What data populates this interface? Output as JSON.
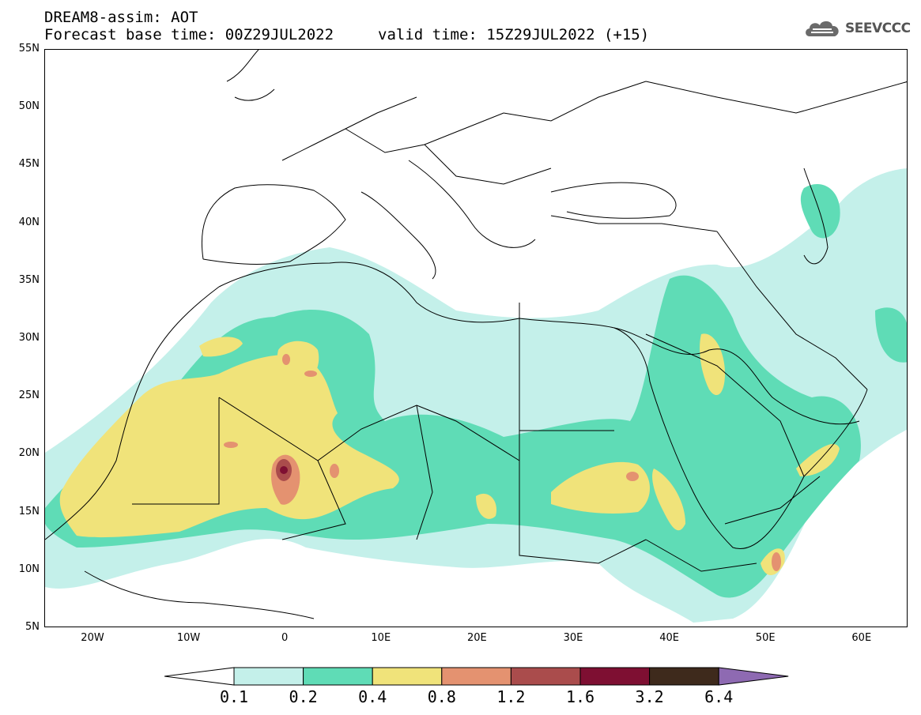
{
  "header": {
    "title": "DREAM8-assim: AOT",
    "forecast_base": "Forecast base time: 00Z29JUL2022",
    "valid_time": "valid time: 15Z29JUL2022 (+15)"
  },
  "logo": {
    "text": "SEEVCCC",
    "icon": "cloud-icon"
  },
  "map": {
    "lat_labels": [
      "55N",
      "50N",
      "45N",
      "40N",
      "35N",
      "30N",
      "25N",
      "20N",
      "15N",
      "10N",
      "5N"
    ],
    "lon_labels": [
      "20W",
      "10W",
      "0",
      "10E",
      "20E",
      "30E",
      "40E",
      "50E",
      "60E"
    ],
    "colors": {
      "level_01": "#c4f0ea",
      "level_02": "#5fdcb6",
      "level_04": "#f0e37a",
      "level_08": "#e49270",
      "level_12": "#aa4c4c",
      "level_16": "#7e0f32",
      "level_32": "#3e2a1c",
      "level_64": "#8e6ab2",
      "borders": "#000000"
    }
  },
  "colorbar": {
    "labels": [
      "0.1",
      "0.2",
      "0.4",
      "0.8",
      "1.2",
      "1.6",
      "3.2",
      "6.4"
    ],
    "colors": [
      "#c4f0ea",
      "#5fdcb6",
      "#f0e37a",
      "#e49270",
      "#aa4c4c",
      "#7e0f32",
      "#3e2a1c"
    ],
    "over_color": "#8e6ab2",
    "under_color": "#ffffff"
  }
}
